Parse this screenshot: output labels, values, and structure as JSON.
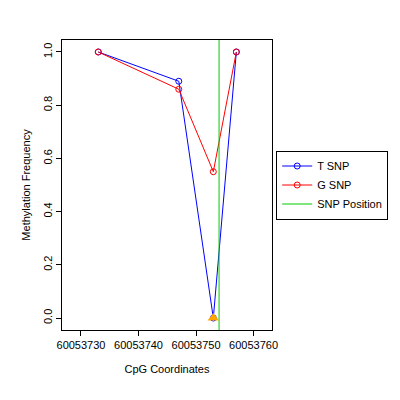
{
  "chart_data": {
    "type": "line",
    "xlabel": "CpG Coordinates",
    "ylabel": "Methylation Frequency",
    "xlim": [
      60053726.7,
      60053763.2
    ],
    "ylim": [
      -0.045,
      1.045
    ],
    "xticks": [
      60053730,
      60053740,
      60053750,
      60053760
    ],
    "yticks": [
      {
        "value": 0,
        "label": "0.0"
      },
      {
        "value": 0.2,
        "label": "0.2"
      },
      {
        "value": 0.4,
        "label": "0.4"
      },
      {
        "value": 0.6,
        "label": "0.6"
      },
      {
        "value": 0.8,
        "label": "0.8"
      },
      {
        "value": 1,
        "label": "1.0"
      }
    ],
    "legend": "right",
    "series": [
      {
        "name": "T SNP",
        "color": "blue",
        "marker": "circle-open",
        "line_style": "solid",
        "x": [
          60053733,
          60053747,
          60053753,
          60053757
        ],
        "values": [
          1.0,
          0.89,
          0.0,
          1.0
        ]
      },
      {
        "name": "G SNP",
        "color": "red",
        "marker": "circle-open",
        "line_style": "solid",
        "x": [
          60053733,
          60053747,
          60053753,
          60053757
        ],
        "values": [
          1.0,
          0.86,
          0.55,
          1.0
        ]
      },
      {
        "name": "SNP Position",
        "type": "vline",
        "color": "#00cc00",
        "line_style": "solid",
        "x": [
          60053754
        ]
      },
      {
        "color": "orange",
        "marker": "triangle-up",
        "type": "scatter",
        "x": [
          60053753
        ],
        "values": [
          0.0
        ]
      }
    ]
  }
}
